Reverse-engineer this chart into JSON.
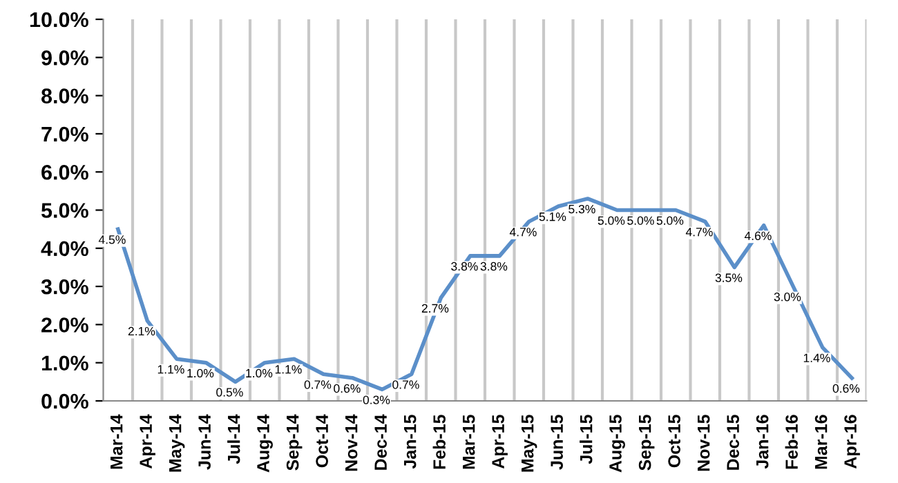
{
  "chart_data": {
    "type": "line",
    "categories": [
      "Mar-14",
      "Apr-14",
      "May-14",
      "Jun-14",
      "Jul-14",
      "Aug-14",
      "Sep-14",
      "Oct-14",
      "Nov-14",
      "Dec-14",
      "Jan-15",
      "Feb-15",
      "Mar-15",
      "Apr-15",
      "May-15",
      "Jun-15",
      "Jul-15",
      "Aug-15",
      "Sep-15",
      "Oct-15",
      "Nov-15",
      "Dec-15",
      "Jan-16",
      "Feb-16",
      "Mar-16",
      "Apr-16"
    ],
    "series": [
      {
        "color": "#5b8fc9",
        "values": [
          4.5,
          2.1,
          1.1,
          1.0,
          0.5,
          1.0,
          1.1,
          0.7,
          0.6,
          0.3,
          0.7,
          2.7,
          3.8,
          3.8,
          4.7,
          5.1,
          5.3,
          5.0,
          5.0,
          5.0,
          4.7,
          3.5,
          4.6,
          3.0,
          1.4,
          0.6
        ],
        "value_labels": [
          "4.5%",
          "2.1%",
          "1.1%",
          "1.0%",
          "0.5%",
          "1.0%",
          "1.1%",
          "0.7%",
          "0.6%",
          "0.3%",
          "0.7%",
          "2.7%",
          "3.8%",
          "3.8%",
          "4.7%",
          "5.1%",
          "5.3%",
          "5.0%",
          "5.0%",
          "5.0%",
          "4.7%",
          "3.5%",
          "4.6%",
          "3.0%",
          "1.4%",
          "0.6%"
        ]
      }
    ],
    "ylim": [
      0,
      10
    ],
    "yticks": [
      {
        "value": 0,
        "label": "0.0%"
      },
      {
        "value": 1,
        "label": "1.0%"
      },
      {
        "value": 2,
        "label": "2.0%"
      },
      {
        "value": 3,
        "label": "3.0%"
      },
      {
        "value": 4,
        "label": "4.0%"
      },
      {
        "value": 5,
        "label": "5.0%"
      },
      {
        "value": 6,
        "label": "6.0%"
      },
      {
        "value": 7,
        "label": "7.0%"
      },
      {
        "value": 8,
        "label": "8.0%"
      },
      {
        "value": 9,
        "label": "9.0%"
      },
      {
        "value": 10,
        "label": "10.0%"
      }
    ],
    "grid": "x",
    "marker": "none",
    "line_style": "solid"
  }
}
